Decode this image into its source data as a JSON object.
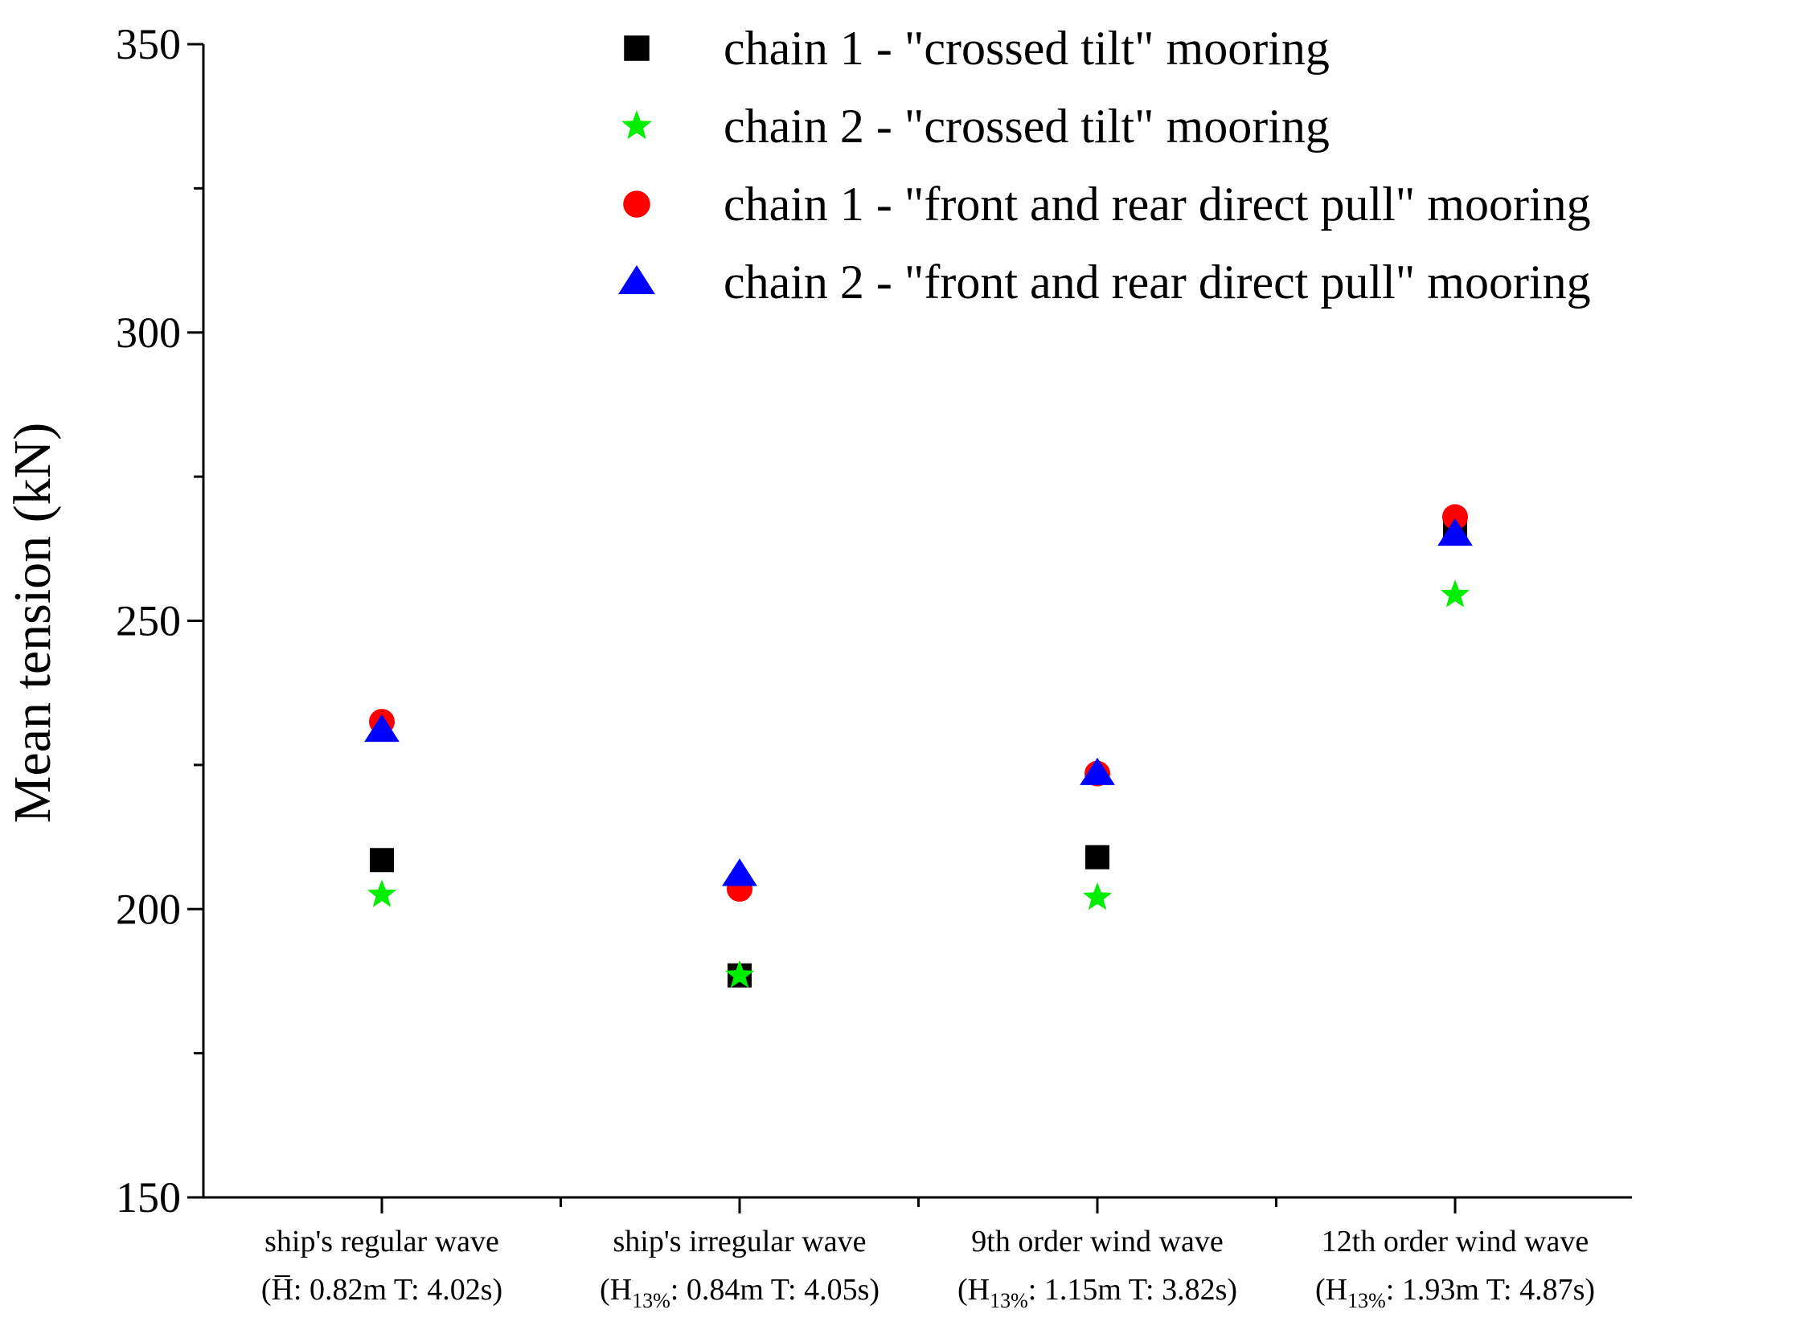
{
  "chart_data": {
    "type": "scatter",
    "title": "",
    "xlabel": "",
    "ylabel": "Mean tension (kN)",
    "ylim": [
      150,
      350
    ],
    "yticks": [
      150,
      200,
      250,
      300,
      350
    ],
    "grid": false,
    "legend_position": "top-right",
    "categories": [
      {
        "line1": "ship's regular wave",
        "line2": "(H̅: 0.82m T: 4.02s)",
        "h_sub": ""
      },
      {
        "line1": "ship's irregular wave",
        "line2": "(H: 0.84m T: 4.05s)",
        "h_sub": "13%"
      },
      {
        "line1": "9th order wind wave",
        "line2": "(H: 1.15m T: 3.82s)",
        "h_sub": "13%"
      },
      {
        "line1": "12th order wind wave",
        "line2": "(H: 1.93m T: 4.87s)",
        "h_sub": "13%"
      }
    ],
    "series": [
      {
        "name": "chain 1 - \"crossed tilt\" mooring",
        "marker": "square",
        "color": "#000000",
        "values": [
          208.5,
          188.5,
          209,
          266
        ]
      },
      {
        "name": "chain 2 - \"crossed tilt\" mooring",
        "marker": "star",
        "color": "#00ee00",
        "values": [
          202.5,
          188.5,
          202,
          254.5
        ]
      },
      {
        "name": "chain 1 - \"front and rear direct pull\" mooring",
        "marker": "circle",
        "color": "#ff0000",
        "values": [
          232.5,
          203.5,
          223.5,
          268
        ]
      },
      {
        "name": "chain 2 - \"front and rear direct pull\" mooring",
        "marker": "triangle",
        "color": "#0000ff",
        "values": [
          231,
          206,
          223.5,
          265
        ]
      }
    ]
  }
}
